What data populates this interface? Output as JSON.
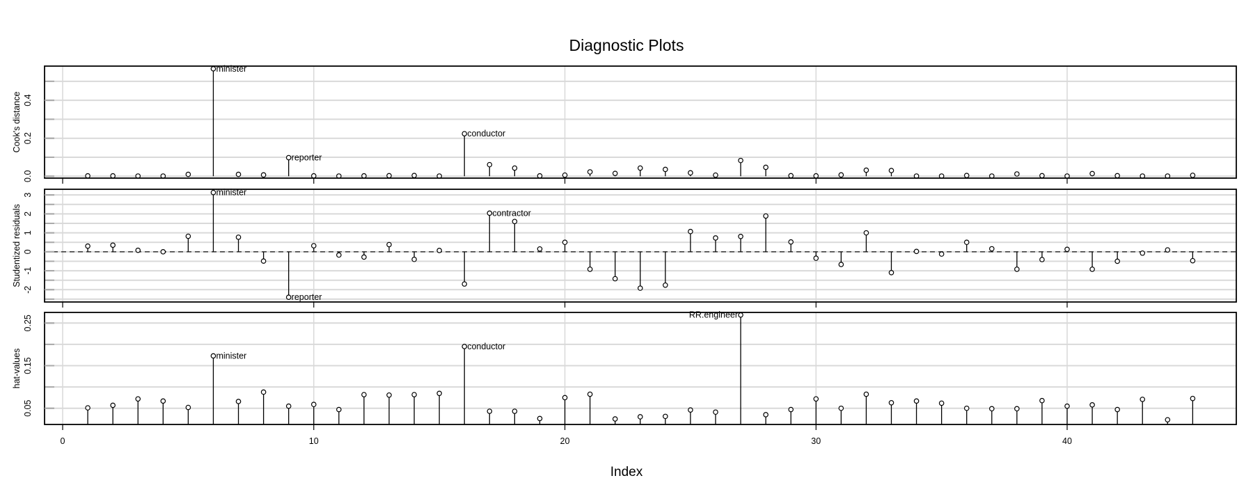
{
  "title": "Diagnostic Plots",
  "xlabel": "Index",
  "chart_data": {
    "type": "line",
    "subtype": "stem (type='h') index plots, 3 stacked panels",
    "title": "Diagnostic Plots",
    "xlabel": "Index",
    "x": [
      1,
      2,
      3,
      4,
      5,
      6,
      7,
      8,
      9,
      10,
      11,
      12,
      13,
      14,
      15,
      16,
      17,
      18,
      19,
      20,
      21,
      22,
      23,
      24,
      25,
      26,
      27,
      28,
      29,
      30,
      31,
      32,
      33,
      34,
      35,
      36,
      37,
      38,
      39,
      40,
      41,
      42,
      43,
      44,
      45
    ],
    "xlim": [
      0,
      46
    ],
    "xticks": [
      0,
      10,
      20,
      30,
      40
    ],
    "grid": true,
    "panels": [
      {
        "name": "cooks-distance",
        "ylabel": "Cook's distance",
        "yticks": [
          0.0,
          0.2,
          0.4
        ],
        "ytick_labels": [
          "0.0",
          "0.2",
          "0.4"
        ],
        "ylim": [
          -0.01,
          0.58
        ],
        "values": [
          0.002,
          0.002,
          0.001,
          0.001,
          0.01,
          0.566,
          0.01,
          0.007,
          0.098,
          0.002,
          0.001,
          0.002,
          0.003,
          0.004,
          0.001,
          0.224,
          0.061,
          0.043,
          0.002,
          0.006,
          0.023,
          0.015,
          0.043,
          0.036,
          0.018,
          0.006,
          0.083,
          0.047,
          0.003,
          0.002,
          0.007,
          0.032,
          0.03,
          0.001,
          0.001,
          0.004,
          0.001,
          0.012,
          0.003,
          0.001,
          0.014,
          0.003,
          0.001,
          0.001,
          0.005
        ],
        "labels": [
          {
            "index": 6,
            "text": "minister"
          },
          {
            "index": 9,
            "text": "reporter"
          },
          {
            "index": 16,
            "text": "conductor"
          }
        ]
      },
      {
        "name": "studentized-residuals",
        "ylabel": "Studentized residuals",
        "yticks": [
          -2,
          -1,
          0,
          1,
          2,
          3
        ],
        "ytick_labels": [
          "-2",
          "-1",
          "0",
          "1",
          "2",
          "3"
        ],
        "ylim": [
          -2.65,
          3.3
        ],
        "hline": 0,
        "values": [
          0.3,
          0.35,
          0.08,
          0.0,
          0.82,
          3.13,
          0.77,
          -0.49,
          -2.4,
          0.32,
          -0.17,
          -0.28,
          0.38,
          -0.4,
          0.07,
          -1.7,
          2.04,
          1.6,
          0.15,
          0.5,
          -0.92,
          -1.42,
          -1.92,
          -1.76,
          1.07,
          0.73,
          0.81,
          1.89,
          0.52,
          -0.34,
          -0.67,
          1.0,
          -1.1,
          0.02,
          -0.12,
          0.5,
          0.16,
          -0.92,
          -0.41,
          0.13,
          -0.92,
          -0.5,
          -0.07,
          0.1,
          -0.47
        ],
        "labels": [
          {
            "index": 6,
            "text": "minister"
          },
          {
            "index": 9,
            "text": "reporter"
          },
          {
            "index": 17,
            "text": "contractor"
          }
        ]
      },
      {
        "name": "hat-values",
        "ylabel": "hat-values",
        "yticks": [
          0.05,
          0.15,
          0.25
        ],
        "ytick_labels": [
          "0.05",
          "0.15",
          "0.25"
        ],
        "ylim": [
          0.012,
          0.275
        ],
        "values": [
          0.051,
          0.057,
          0.072,
          0.067,
          0.052,
          0.173,
          0.066,
          0.088,
          0.055,
          0.059,
          0.047,
          0.082,
          0.081,
          0.082,
          0.085,
          0.195,
          0.043,
          0.043,
          0.026,
          0.075,
          0.083,
          0.025,
          0.03,
          0.031,
          0.046,
          0.041,
          0.269,
          0.035,
          0.047,
          0.072,
          0.05,
          0.083,
          0.063,
          0.067,
          0.062,
          0.05,
          0.049,
          0.049,
          0.068,
          0.055,
          0.058,
          0.047,
          0.071,
          0.023,
          0.073
        ],
        "labels": [
          {
            "index": 6,
            "text": "minister"
          },
          {
            "index": 16,
            "text": "conductor"
          },
          {
            "index": 27,
            "text": "RR.engineer",
            "position": "left"
          }
        ]
      }
    ]
  },
  "colors": {
    "stem": "#000000",
    "grid": "#d9d9d9",
    "frame": "#000000",
    "ref_line": "#444444"
  }
}
